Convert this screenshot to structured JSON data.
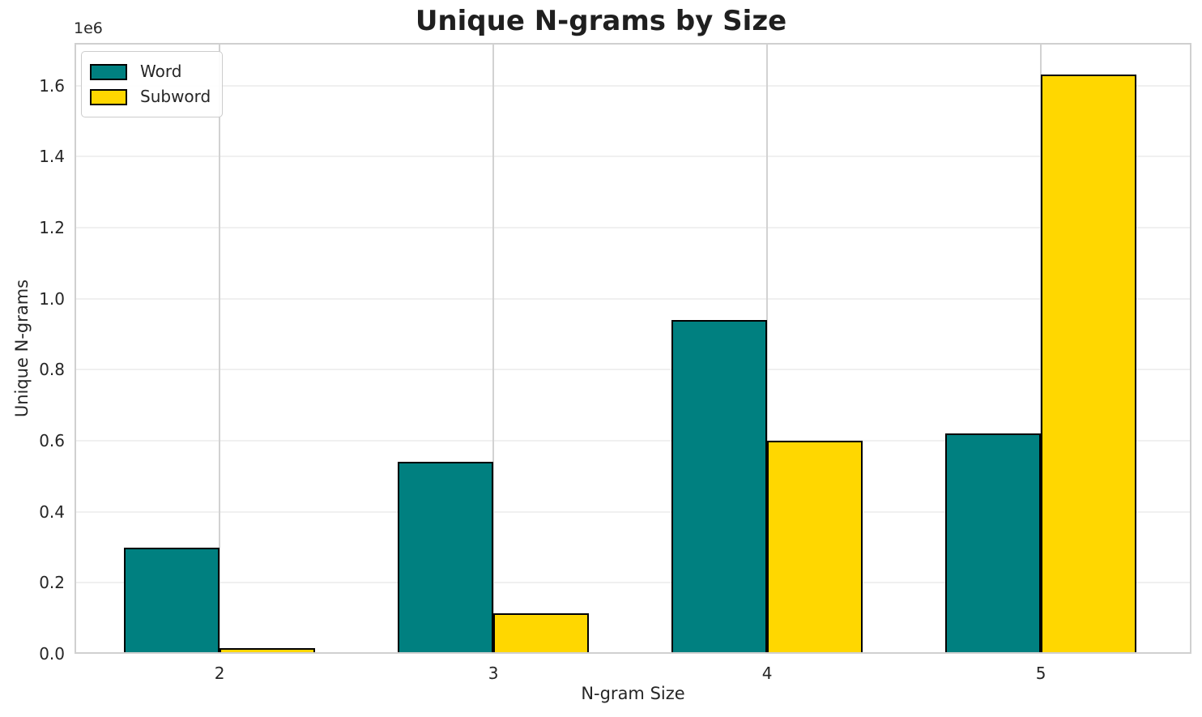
{
  "chart_data": {
    "type": "bar",
    "title": "Unique N-grams by Size",
    "xlabel": "N-gram Size",
    "ylabel": "Unique N-grams",
    "y_offset_label": "1e6",
    "categories": [
      "2",
      "3",
      "4",
      "5"
    ],
    "series": [
      {
        "name": "Word",
        "color": "#008080",
        "values": [
          300000,
          540000,
          940000,
          620000
        ]
      },
      {
        "name": "Subword",
        "color": "#FFD700",
        "values": [
          15000,
          114000,
          600000,
          1630000
        ]
      }
    ],
    "bar_edge_color": "#000000",
    "bar_width_data_units": 0.35,
    "xlim": [
      -0.53,
      3.55
    ],
    "ylim": [
      0,
      1720000
    ],
    "yticks": [
      0,
      200000,
      400000,
      600000,
      800000,
      1000000,
      1200000,
      1400000,
      1600000
    ],
    "ytick_labels": [
      "0.0",
      "0.2",
      "0.4",
      "0.6",
      "0.8",
      "1.0",
      "1.2",
      "1.4",
      "1.6"
    ],
    "grid": true,
    "legend": {
      "position": "upper left",
      "entries": [
        "Word",
        "Subword"
      ]
    }
  },
  "colors": {
    "background": "#ffffff",
    "horizontal_grid": "#f0f0f0",
    "vertical_grid": "#d2d2d2",
    "spine": "#d0d0d0",
    "text": "#262626"
  }
}
